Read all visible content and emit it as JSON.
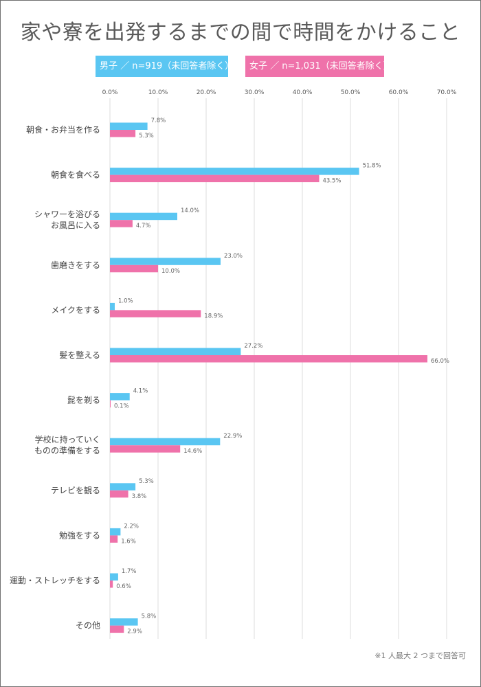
{
  "title": "家や寮を出発するまでの間で時間をかけること",
  "legend": {
    "male": "男子 ／ n=919（未回答者除く）",
    "female": "女子 ／ n=1,031（未回答者除く）"
  },
  "footnote": "※1 人最大 2 つまで回答可",
  "colors": {
    "male": "#5ac6f2",
    "female": "#ef72aa",
    "grid": "#dddddd",
    "text": "#555555"
  },
  "chart_data": {
    "type": "bar",
    "orientation": "horizontal",
    "title": "家や寮を出発するまでの間で時間をかけること",
    "xlim": [
      0,
      70
    ],
    "ticks": [
      "0.0%",
      "10.0%",
      "20.0%",
      "30.0%",
      "40.0%",
      "50.0%",
      "60.0%",
      "70.0%"
    ],
    "tick_values": [
      0,
      10,
      20,
      30,
      40,
      50,
      60,
      70
    ],
    "categories": [
      [
        "朝食・お弁当を作る"
      ],
      [
        "朝食を食べる"
      ],
      [
        "シャワーを浴びる",
        "お風呂に入る"
      ],
      [
        "歯磨きをする"
      ],
      [
        "メイクをする"
      ],
      [
        "髪を整える"
      ],
      [
        "髭を剃る"
      ],
      [
        "学校に持っていく",
        "ものの準備をする"
      ],
      [
        "テレビを観る"
      ],
      [
        "勉強をする"
      ],
      [
        "運動・ストレッチをする"
      ],
      [
        "その他"
      ]
    ],
    "series": [
      {
        "name": "男子 ／ n=919（未回答者除く）",
        "values": [
          7.8,
          51.8,
          14.0,
          23.0,
          1.0,
          27.2,
          4.1,
          22.9,
          5.3,
          2.2,
          1.7,
          5.8
        ],
        "labels": [
          "7.8%",
          "51.8%",
          "14.0%",
          "23.0%",
          "1.0%",
          "27.2%",
          "4.1%",
          "22.9%",
          "5.3%",
          "2.2%",
          "1.7%",
          "5.8%"
        ]
      },
      {
        "name": "女子 ／ n=1,031（未回答者除く）",
        "values": [
          5.3,
          43.5,
          4.7,
          10.0,
          18.9,
          66.0,
          0.1,
          14.6,
          3.8,
          1.6,
          0.6,
          2.9
        ],
        "labels": [
          "5.3%",
          "43.5%",
          "4.7%",
          "10.0%",
          "18.9%",
          "66.0%",
          "0.1%",
          "14.6%",
          "3.8%",
          "1.6%",
          "0.6%",
          "2.9%"
        ]
      }
    ],
    "grid": true,
    "legend_position": "top"
  }
}
